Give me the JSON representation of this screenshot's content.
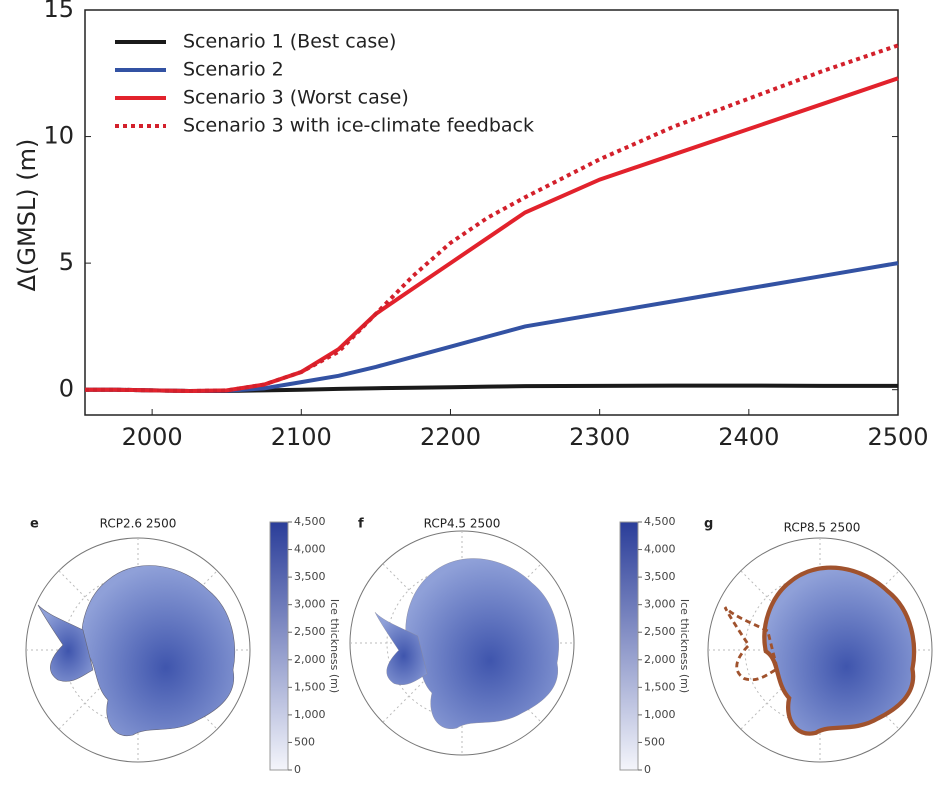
{
  "chart_data": {
    "type": "line",
    "y_label": "Δ(GMSL) (m)",
    "x": [
      1955,
      1975,
      2000,
      2025,
      2050,
      2075,
      2100,
      2125,
      2150,
      2175,
      2200,
      2225,
      2250,
      2300,
      2350,
      2400,
      2450,
      2500
    ],
    "series": [
      {
        "name": "Scenario 1 (Best case)",
        "color": "#1a1a1a",
        "style": "solid",
        "values": [
          0,
          0,
          -0.03,
          -0.05,
          -0.05,
          -0.03,
          0,
          0.03,
          0.06,
          0.08,
          0.1,
          0.12,
          0.14,
          0.15,
          0.16,
          0.16,
          0.15,
          0.15
        ]
      },
      {
        "name": "Scenario 2",
        "color": "#3352a3",
        "style": "solid",
        "values": [
          0,
          0,
          -0.03,
          -0.05,
          -0.04,
          0.05,
          0.3,
          0.55,
          0.9,
          1.3,
          1.7,
          2.1,
          2.5,
          3.0,
          3.5,
          4.0,
          4.5,
          5.0
        ]
      },
      {
        "name": "Scenario 3 (Worst case)",
        "color": "#e2222c",
        "style": "solid",
        "values": [
          0,
          0,
          -0.03,
          -0.05,
          -0.03,
          0.2,
          0.7,
          1.6,
          3.0,
          4.0,
          5.0,
          6.0,
          7.0,
          8.3,
          9.3,
          10.3,
          11.3,
          12.3
        ]
      },
      {
        "name": "Scenario 3 with ice-climate feedback",
        "color": "#d3202b",
        "style": "dotted",
        "values": [
          0,
          0,
          -0.03,
          -0.05,
          -0.03,
          0.2,
          0.7,
          1.5,
          3.0,
          4.5,
          5.8,
          6.8,
          7.6,
          9.1,
          10.4,
          11.5,
          12.6,
          13.6
        ]
      }
    ],
    "xlim": [
      1955,
      2500
    ],
    "ylim": [
      -1,
      15
    ],
    "xticks": [
      2000,
      2100,
      2200,
      2300,
      2400,
      2500
    ],
    "yticks": [
      0,
      5,
      10,
      15
    ],
    "grid": false,
    "legend": "top-left"
  },
  "maps": [
    {
      "letter": "e",
      "title": "RCP2.6 2500"
    },
    {
      "letter": "f",
      "title": "RCP4.5 2500"
    },
    {
      "letter": "g",
      "title": "RCP8.5 2500"
    }
  ],
  "colorbar": {
    "label": "Ice thickness (m)",
    "lim": [
      0,
      4500
    ],
    "ticks": [
      0,
      500,
      {
        "value": 1000,
        "label": "1,000"
      },
      {
        "value": 1500,
        "label": "1,500"
      },
      {
        "value": 2000,
        "label": "2,000"
      },
      {
        "value": 2500,
        "label": "2,500"
      },
      {
        "value": 3000,
        "label": "3,000"
      },
      {
        "value": 3500,
        "label": "3,500"
      },
      {
        "value": 4000,
        "label": "4,000"
      },
      {
        "value": 4500,
        "label": "4,500"
      }
    ]
  }
}
